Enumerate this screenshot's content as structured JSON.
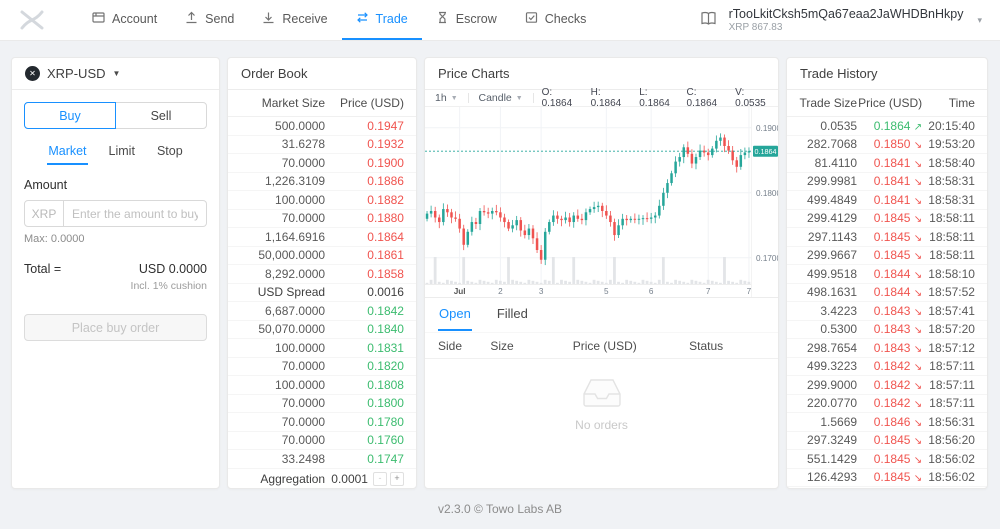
{
  "header": {
    "nav": [
      "Account",
      "Send",
      "Receive",
      "Trade",
      "Escrow",
      "Checks"
    ],
    "account": {
      "address": "rTooLkitCksh5mQa67eaa2JaWHDBnHkpy",
      "balance": "XRP 867.83"
    }
  },
  "pair_panel": {
    "pair": "XRP-USD",
    "buy_label": "Buy",
    "sell_label": "Sell",
    "order_types": [
      "Market",
      "Limit",
      "Stop"
    ],
    "amount_label": "Amount",
    "currency_prefix": "XRP",
    "amount_placeholder": "Enter the amount to buy",
    "max_note": "Max: 0.0000",
    "total_label": "Total =",
    "total_value": "USD 0.0000",
    "cushion_note": "Incl. 1% cushion",
    "place_order_label": "Place buy order"
  },
  "order_book": {
    "title": "Order Book",
    "columns": [
      "Market Size",
      "Price (USD)"
    ],
    "asks": [
      [
        "500.0000",
        "0.1947"
      ],
      [
        "31.6278",
        "0.1932"
      ],
      [
        "70.0000",
        "0.1900"
      ],
      [
        "1,226.3109",
        "0.1886"
      ],
      [
        "100.0000",
        "0.1882"
      ],
      [
        "70.0000",
        "0.1880"
      ],
      [
        "1,164.6916",
        "0.1864"
      ],
      [
        "50,000.0000",
        "0.1861"
      ],
      [
        "8,292.0000",
        "0.1858"
      ]
    ],
    "spread_label": "USD Spread",
    "spread_value": "0.0016",
    "bids": [
      [
        "6,687.0000",
        "0.1842"
      ],
      [
        "50,070.0000",
        "0.1840"
      ],
      [
        "100.0000",
        "0.1831"
      ],
      [
        "70.0000",
        "0.1820"
      ],
      [
        "100.0000",
        "0.1808"
      ],
      [
        "70.0000",
        "0.1800"
      ],
      [
        "70.0000",
        "0.1780"
      ],
      [
        "70.0000",
        "0.1760"
      ],
      [
        "33.2498",
        "0.1747"
      ]
    ],
    "aggregation_label": "Aggregation",
    "aggregation_value": "0.0001",
    "minus_label": "-",
    "plus_label": "+"
  },
  "price_charts": {
    "title": "Price Charts",
    "interval_label": "1h",
    "style_label": "Candle",
    "legend": [
      "O: 0.1864",
      "H: 0.1864",
      "L: 0.1864",
      "C: 0.1864",
      "V: 0.0535"
    ]
  },
  "chart_data": {
    "type": "candlestick",
    "interval": "1h",
    "last_price": 0.1864,
    "last_price_label": "0.1864",
    "y_ticks": [
      {
        "v": 0.19,
        "label": "0.1900"
      },
      {
        "v": 0.18,
        "label": "0.1800"
      },
      {
        "v": 0.17,
        "label": "0.1700"
      }
    ],
    "ylim": [
      0.1672,
      0.1932
    ],
    "x_ticks": [
      {
        "i": 8,
        "label": "Jul"
      },
      {
        "i": 18,
        "label": "2"
      },
      {
        "i": 28,
        "label": "3"
      },
      {
        "i": 44,
        "label": "5"
      },
      {
        "i": 55,
        "label": "6"
      },
      {
        "i": 69,
        "label": "7"
      },
      {
        "i": 79,
        "label": "7"
      }
    ],
    "closes": [
      0.1768,
      0.1772,
      0.1762,
      0.1755,
      0.1775,
      0.177,
      0.1762,
      0.176,
      0.1745,
      0.172,
      0.174,
      0.1755,
      0.1752,
      0.1772,
      0.177,
      0.1768,
      0.1772,
      0.177,
      0.1762,
      0.1755,
      0.1745,
      0.175,
      0.1758,
      0.1742,
      0.1735,
      0.1745,
      0.173,
      0.1712,
      0.1697,
      0.174,
      0.1755,
      0.1765,
      0.176,
      0.1758,
      0.1762,
      0.1755,
      0.1765,
      0.176,
      0.1758,
      0.177,
      0.1775,
      0.1778,
      0.178,
      0.1772,
      0.1765,
      0.1755,
      0.1735,
      0.175,
      0.176,
      0.1758,
      0.176,
      0.1759,
      0.176,
      0.1761,
      0.176,
      0.1762,
      0.1765,
      0.178,
      0.18,
      0.1815,
      0.183,
      0.1848,
      0.1855,
      0.187,
      0.186,
      0.1845,
      0.1855,
      0.1865,
      0.1862,
      0.1858,
      0.1868,
      0.188,
      0.1885,
      0.1872,
      0.1865,
      0.185,
      0.184,
      0.1858,
      0.1862,
      0.1864
    ],
    "volume_spike_indices": [
      2,
      9,
      20,
      31,
      36,
      46,
      58,
      73
    ],
    "colors": {
      "up": "#26a69a",
      "down": "#ef5350",
      "volume": "#e3e5e8",
      "grid": "#f1f3f6",
      "axis_text": "#76808c",
      "badge": "#26a69a"
    }
  },
  "orders": {
    "tabs": [
      "Open",
      "Filled"
    ],
    "columns": [
      "Side",
      "Size",
      "Price (USD)",
      "Status"
    ],
    "empty_text": "No orders"
  },
  "trade_history": {
    "title": "Trade History",
    "columns": [
      "Trade Size",
      "Price (USD)",
      "Time"
    ],
    "rows": [
      {
        "size": "0.0535",
        "price": "0.1864",
        "dir": "up",
        "time": "20:15:40"
      },
      {
        "size": "282.7068",
        "price": "0.1850",
        "dir": "down",
        "time": "19:53:20"
      },
      {
        "size": "81.4110",
        "price": "0.1841",
        "dir": "down",
        "time": "18:58:40"
      },
      {
        "size": "299.9981",
        "price": "0.1841",
        "dir": "down",
        "time": "18:58:31"
      },
      {
        "size": "499.4849",
        "price": "0.1841",
        "dir": "down",
        "time": "18:58:31"
      },
      {
        "size": "299.4129",
        "price": "0.1845",
        "dir": "down",
        "time": "18:58:11"
      },
      {
        "size": "297.1143",
        "price": "0.1845",
        "dir": "down",
        "time": "18:58:11"
      },
      {
        "size": "299.9667",
        "price": "0.1845",
        "dir": "down",
        "time": "18:58:11"
      },
      {
        "size": "499.9518",
        "price": "0.1844",
        "dir": "down",
        "time": "18:58:10"
      },
      {
        "size": "498.1631",
        "price": "0.1844",
        "dir": "down",
        "time": "18:57:52"
      },
      {
        "size": "3.4223",
        "price": "0.1843",
        "dir": "down",
        "time": "18:57:41"
      },
      {
        "size": "0.5300",
        "price": "0.1843",
        "dir": "down",
        "time": "18:57:20"
      },
      {
        "size": "298.7654",
        "price": "0.1843",
        "dir": "down",
        "time": "18:57:12"
      },
      {
        "size": "499.3223",
        "price": "0.1842",
        "dir": "down",
        "time": "18:57:11"
      },
      {
        "size": "299.9000",
        "price": "0.1842",
        "dir": "down",
        "time": "18:57:11"
      },
      {
        "size": "220.0770",
        "price": "0.1842",
        "dir": "down",
        "time": "18:57:11"
      },
      {
        "size": "1.5669",
        "price": "0.1846",
        "dir": "down",
        "time": "18:56:31"
      },
      {
        "size": "297.3249",
        "price": "0.1845",
        "dir": "down",
        "time": "18:56:20"
      },
      {
        "size": "551.1429",
        "price": "0.1845",
        "dir": "down",
        "time": "18:56:02"
      },
      {
        "size": "126.4293",
        "price": "0.1845",
        "dir": "down",
        "time": "18:56:02"
      }
    ]
  },
  "footer": {
    "version_text": "v2.3.0 © Towo Labs AB"
  }
}
